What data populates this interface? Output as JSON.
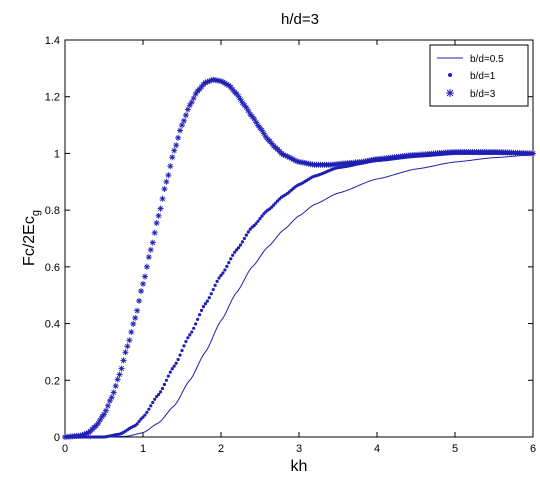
{
  "chart_data": {
    "type": "line",
    "title": "h/d=3",
    "xlabel": "kh",
    "ylabel_main": "Fc/2Ec",
    "ylabel_sub": "g",
    "xlim": [
      0,
      6
    ],
    "ylim": [
      0,
      1.4
    ],
    "xticks": [
      "0",
      "1",
      "2",
      "3",
      "4",
      "5",
      "6"
    ],
    "yticks": [
      "0",
      "0.2",
      "0.4",
      "0.6",
      "0.8",
      "1",
      "1.2",
      "1.4"
    ],
    "grid": false,
    "legend_position": "top-right",
    "color": "#1f1fb4",
    "series": [
      {
        "name": "b/d=0.5",
        "marker": "line",
        "x": [
          0,
          0.5,
          0.8,
          1.0,
          1.2,
          1.4,
          1.6,
          1.8,
          2.0,
          2.2,
          2.4,
          2.6,
          2.8,
          3.0,
          3.2,
          3.5,
          4.0,
          4.5,
          5.0,
          5.5,
          6.0
        ],
        "y": [
          0.0,
          0.0,
          0.003,
          0.015,
          0.05,
          0.11,
          0.2,
          0.3,
          0.41,
          0.51,
          0.6,
          0.67,
          0.73,
          0.78,
          0.82,
          0.86,
          0.91,
          0.945,
          0.97,
          0.985,
          0.995
        ]
      },
      {
        "name": "b/d=1",
        "marker": "dot",
        "x": [
          0,
          0.5,
          0.7,
          0.9,
          1.0,
          1.2,
          1.4,
          1.6,
          1.8,
          2.0,
          2.2,
          2.4,
          2.6,
          2.8,
          3.0,
          3.2,
          3.5,
          4.0,
          4.5,
          5.0,
          5.5,
          6.0
        ],
        "y": [
          0.0,
          0.0,
          0.01,
          0.04,
          0.07,
          0.15,
          0.25,
          0.36,
          0.47,
          0.57,
          0.66,
          0.74,
          0.8,
          0.85,
          0.89,
          0.92,
          0.95,
          0.975,
          0.99,
          1.0,
          1.0,
          1.0
        ]
      },
      {
        "name": "b/d=3",
        "marker": "star",
        "x": [
          0,
          0.2,
          0.3,
          0.4,
          0.5,
          0.6,
          0.7,
          0.8,
          0.9,
          1.0,
          1.1,
          1.2,
          1.3,
          1.4,
          1.5,
          1.6,
          1.7,
          1.8,
          1.9,
          2.0,
          2.1,
          2.2,
          2.3,
          2.4,
          2.5,
          2.6,
          2.7,
          2.8,
          3.0,
          3.2,
          3.4,
          3.6,
          3.8,
          4.0,
          4.5,
          5.0,
          5.5,
          6.0
        ],
        "y": [
          0.0,
          0.005,
          0.015,
          0.04,
          0.08,
          0.14,
          0.22,
          0.32,
          0.42,
          0.54,
          0.66,
          0.78,
          0.9,
          1.01,
          1.1,
          1.17,
          1.22,
          1.25,
          1.26,
          1.255,
          1.24,
          1.21,
          1.17,
          1.13,
          1.09,
          1.05,
          1.02,
          0.995,
          0.97,
          0.96,
          0.96,
          0.965,
          0.97,
          0.98,
          0.995,
          1.005,
          1.005,
          1.0
        ]
      }
    ]
  }
}
